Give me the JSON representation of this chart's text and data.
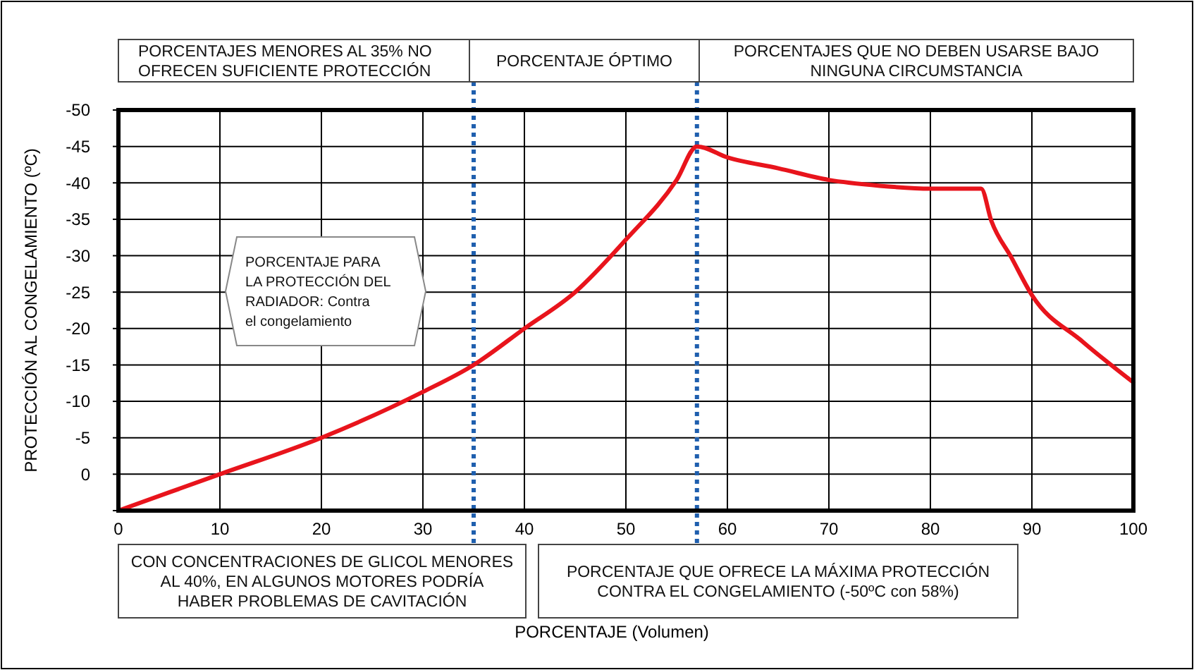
{
  "chart_data": {
    "type": "line",
    "xlabel": "PORCENTAJE (Volumen)",
    "ylabel": "PROTECCIÓN AL CONGELAMIENTO (ºC)",
    "x": [
      0,
      10,
      20,
      30,
      35,
      40,
      45,
      50,
      55,
      57,
      60,
      65,
      70,
      75,
      80,
      85,
      86,
      88,
      90,
      95,
      100
    ],
    "series": [
      {
        "color": "#e8141c",
        "values": [
          5,
          0,
          -5,
          -11.3,
          -15,
          -20,
          -25,
          -32.2,
          -40.4,
          -45,
          -43.5,
          -42,
          -40.4,
          -39.6,
          -39.2,
          -39.2,
          -34.8,
          -29.7,
          -24.6,
          -18.2,
          -12.6
        ]
      }
    ],
    "xlim": [
      0,
      100
    ],
    "xticks": [
      0,
      10,
      20,
      30,
      40,
      50,
      60,
      70,
      80,
      90,
      100
    ],
    "ylim": [
      5,
      -50
    ],
    "yticks": [
      -50,
      -45,
      -40,
      -35,
      -30,
      -25,
      -20,
      -15,
      -10,
      -5,
      0,
      {
        "value": 5,
        "label": null
      }
    ],
    "grid": true,
    "marker": "none",
    "line_style": "solid",
    "ref_lines": [
      {
        "axis": "x",
        "value": 35,
        "color": "#1f5fae",
        "line_style": "dotted"
      },
      {
        "axis": "x",
        "value": 57,
        "color": "#1f5fae",
        "line_style": "dotted"
      }
    ],
    "annotations": [
      "PORCENTAJES MENORES AL 35% NO OFRECEN SUFICIENTE PROTECCIÓN",
      "PORCENTAJE ÓPTIMO",
      "PORCENTAJES QUE NO DEBEN USARSE BAJO NINGUNA CIRCUMSTANCIA",
      "PORCENTAJE PARA LA PROTECCIÓN DEL RADIADOR: Contra el congelamiento",
      "CON CONCENTRACIONES DE GLICOL MENORES AL 40%, EN ALGUNOS MOTORES PODRÍA HABER PROBLEMAS DE CAVITACIÓN",
      "PORCENTAJE QUE OFRECE LA MÁXIMA PROTECCIÓN CONTRA EL CONGELAMIENTO (-50ºC con 58%)"
    ]
  }
}
